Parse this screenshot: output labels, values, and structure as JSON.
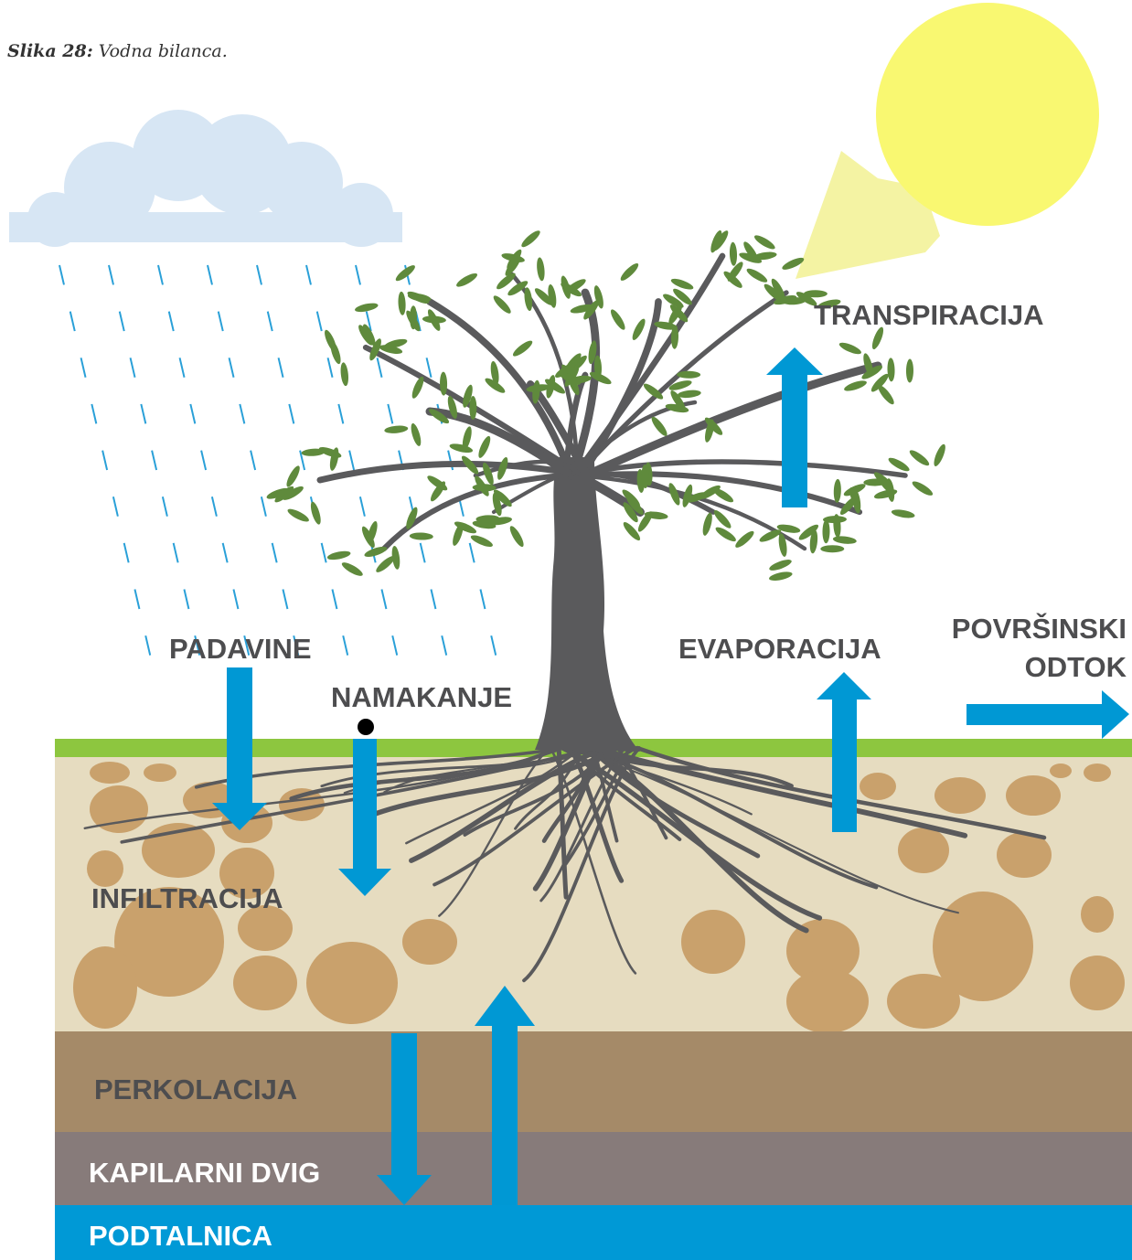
{
  "caption": {
    "label": "Slika 28:",
    "text": "Vodna bilanca."
  },
  "labels": {
    "transpiration": "TRANSPIRACIJA",
    "precipitation": "PADAVINE",
    "irrigation": "NAMAKANJE",
    "evaporation": "EVAPORACIJA",
    "runoff_line1": "POVRŠINSKI",
    "runoff_line2": "ODTOK",
    "infiltration": "INFILTRACIJA",
    "percolation": "PERKOLACIJA",
    "capillary_rise": "KAPILARNI DVIG",
    "groundwater": "PODTALNICA"
  }
}
